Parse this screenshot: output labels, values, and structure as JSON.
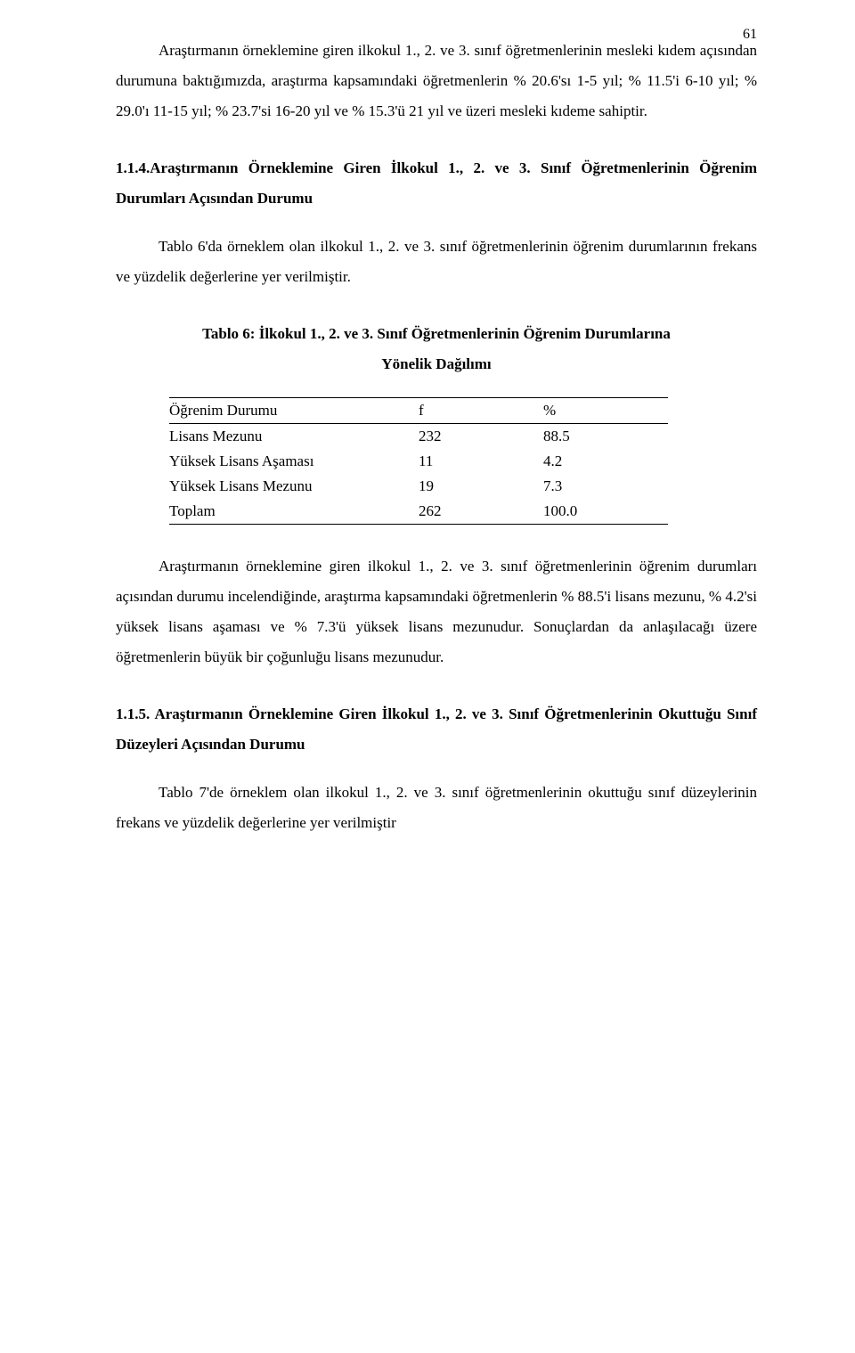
{
  "page_number": "61",
  "para1": "Araştırmanın örneklemine giren ilkokul 1., 2. ve 3. sınıf öğretmenlerinin mesleki kıdem açısından durumuna baktığımızda, araştırma kapsamındaki öğretmenlerin % 20.6'sı 1-5 yıl; % 11.5'i 6-10 yıl; % 29.0'ı 11-15 yıl; % 23.7'si 16-20 yıl ve % 15.3'ü 21 yıl ve üzeri mesleki kıdeme sahiptir.",
  "section_1_1_4": "1.1.4.Araştırmanın Örneklemine Giren İlkokul 1., 2. ve 3. Sınıf Öğretmenlerinin Öğrenim Durumları Açısından Durumu",
  "para2": "Tablo 6'da örneklem olan ilkokul 1., 2. ve 3. sınıf öğretmenlerinin öğrenim durumlarının frekans ve yüzdelik değerlerine yer verilmiştir.",
  "table6_caption_line1": "Tablo 6: İlkokul 1., 2. ve 3. Sınıf Öğretmenlerinin Öğrenim Durumlarına",
  "table6_caption_line2": "Yönelik Dağılımı",
  "table6": {
    "headers": {
      "c1": "Öğrenim Durumu",
      "c2": "f",
      "c3": "%"
    },
    "rows": [
      {
        "c1": "Lisans Mezunu",
        "c2": "232",
        "c3": "88.5"
      },
      {
        "c1": "Yüksek Lisans Aşaması",
        "c2": "11",
        "c3": "4.2"
      },
      {
        "c1": "Yüksek Lisans Mezunu",
        "c2": "19",
        "c3": "7.3"
      },
      {
        "c1": "Toplam",
        "c2": "262",
        "c3": "100.0"
      }
    ]
  },
  "para3": "Araştırmanın örneklemine giren ilkokul 1., 2. ve 3. sınıf öğretmenlerinin öğrenim durumları açısından durumu incelendiğinde, araştırma kapsamındaki öğretmenlerin % 88.5'i lisans mezunu,  % 4.2'si yüksek lisans aşaması ve % 7.3'ü yüksek lisans mezunudur. Sonuçlardan da anlaşılacağı üzere öğretmenlerin büyük bir çoğunluğu lisans mezunudur.",
  "section_1_1_5": "1.1.5. Araştırmanın Örneklemine Giren İlkokul 1., 2. ve 3. Sınıf Öğretmenlerinin Okuttuğu Sınıf Düzeyleri Açısından Durumu",
  "para4": "Tablo 7'de örneklem olan ilkokul 1., 2. ve 3. sınıf öğretmenlerinin okuttuğu sınıf düzeylerinin frekans ve yüzdelik değerlerine yer verilmiştir"
}
